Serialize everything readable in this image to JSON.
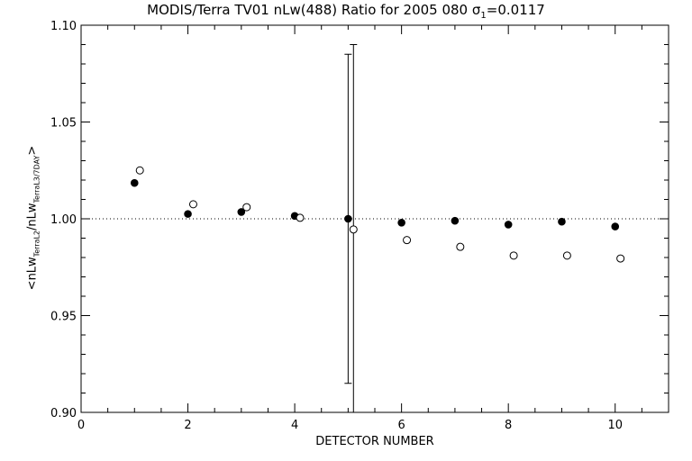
{
  "chart_data": {
    "type": "scatter",
    "title_main": "MODIS/Terra TV01 nLw(488) Ratio for 2005 080 ",
    "title_sigma": "σ",
    "title_sigma_sub": "1",
    "title_sigma_value": "=0.0117",
    "xlabel": "DETECTOR NUMBER",
    "ylabel_prefix": "<nLw",
    "ylabel_sub1": "TerraL2",
    "ylabel_mid": "/nLw",
    "ylabel_sub2": "TerraL3/7DAY",
    "ylabel_suffix": ">",
    "xlim": [
      0,
      11
    ],
    "ylim": [
      0.9,
      1.1
    ],
    "x_ticks": [
      0,
      2,
      4,
      6,
      8,
      10
    ],
    "x_tick_labels": [
      "0",
      "2",
      "4",
      "6",
      "8",
      "10"
    ],
    "y_ticks": [
      0.9,
      0.95,
      1.0,
      1.05,
      1.1
    ],
    "y_tick_labels": [
      "0.90",
      "0.95",
      "1.00",
      "1.05",
      "1.10"
    ],
    "reference_line": 1.0,
    "series": [
      {
        "marker": "filled-circle",
        "x": [
          1,
          2,
          3,
          4,
          5,
          6,
          7,
          8,
          9,
          10
        ],
        "y": [
          1.0185,
          1.0025,
          1.0035,
          1.0015,
          1.0,
          0.998,
          0.999,
          0.997,
          0.9985,
          0.996
        ],
        "error_bars": [
          {
            "x": 5.0,
            "low": 0.915,
            "high": 1.085
          }
        ]
      },
      {
        "marker": "open-circle",
        "x": [
          1.1,
          2.1,
          3.1,
          4.1,
          5.1,
          6.1,
          7.1,
          8.1,
          9.1,
          10.1
        ],
        "y": [
          1.025,
          1.0075,
          1.006,
          1.0005,
          0.9945,
          0.989,
          0.9855,
          0.981,
          0.981,
          0.9795
        ],
        "error_bars": [
          {
            "x": 5.1,
            "low": 0.9,
            "high": 1.09
          }
        ]
      }
    ],
    "grid": false,
    "legend": "none"
  }
}
